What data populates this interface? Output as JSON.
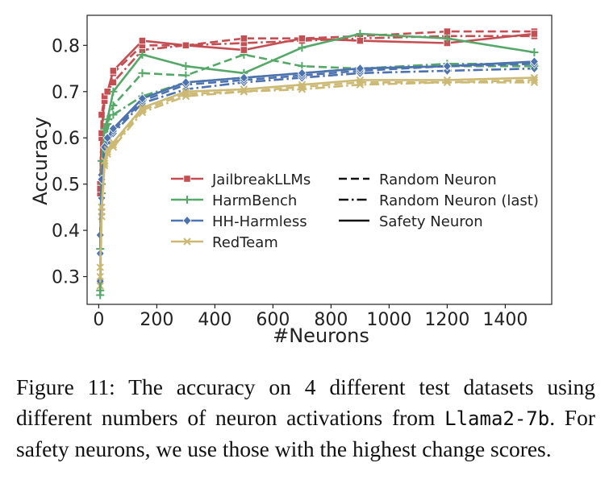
{
  "chart_data": {
    "type": "line",
    "xlabel": "#Neurons",
    "ylabel": "Accuracy",
    "xlim": [
      -40,
      1560
    ],
    "ylim": [
      0.24,
      0.865
    ],
    "xticks": [
      0,
      200,
      400,
      600,
      800,
      1000,
      1200,
      1400
    ],
    "yticks": [
      0.3,
      0.4,
      0.5,
      0.6,
      0.7,
      0.8
    ],
    "x": [
      5,
      10,
      20,
      30,
      50,
      150,
      300,
      500,
      700,
      900,
      1200,
      1500
    ],
    "legend_datasets": [
      {
        "name": "JailbreakLLMs",
        "color": "#c44e52",
        "marker": "square"
      },
      {
        "name": "HarmBench",
        "color": "#55a868",
        "marker": "plus"
      },
      {
        "name": "HH-Harmless",
        "color": "#4c72b0",
        "marker": "diamond"
      },
      {
        "name": "RedTeam",
        "color": "#ccb974",
        "marker": "x"
      }
    ],
    "legend_styles": [
      {
        "name": "Random Neuron",
        "dash": "dashed"
      },
      {
        "name": "Random Neuron (last)",
        "dash": "dashdot"
      },
      {
        "name": "Safety Neuron",
        "dash": "solid"
      }
    ],
    "legend_position": "center",
    "grid": false,
    "series": [
      {
        "dataset": "JailbreakLLMs",
        "style": "solid",
        "values": [
          0.49,
          0.61,
          0.69,
          0.7,
          0.745,
          0.81,
          0.8,
          0.79,
          0.815,
          0.81,
          0.805,
          0.825
        ]
      },
      {
        "dataset": "JailbreakLLMs",
        "style": "dashed",
        "values": [
          0.48,
          0.6,
          0.68,
          0.7,
          0.74,
          0.8,
          0.8,
          0.815,
          0.815,
          0.82,
          0.83,
          0.83
        ]
      },
      {
        "dataset": "JailbreakLLMs",
        "style": "dashdot",
        "values": [
          0.5,
          0.65,
          0.69,
          0.7,
          0.72,
          0.79,
          0.8,
          0.805,
          0.81,
          0.815,
          0.82,
          0.82
        ]
      },
      {
        "dataset": "HarmBench",
        "style": "solid",
        "values": [
          0.36,
          0.55,
          0.62,
          0.64,
          0.7,
          0.78,
          0.755,
          0.74,
          0.795,
          0.825,
          0.815,
          0.785
        ]
      },
      {
        "dataset": "HarmBench",
        "style": "dashed",
        "values": [
          0.27,
          0.5,
          0.6,
          0.63,
          0.67,
          0.74,
          0.735,
          0.78,
          0.755,
          0.75,
          0.755,
          0.755
        ]
      },
      {
        "dataset": "HarmBench",
        "style": "dashdot",
        "values": [
          0.26,
          0.48,
          0.58,
          0.62,
          0.65,
          0.69,
          0.72,
          0.73,
          0.74,
          0.75,
          0.76,
          0.76
        ]
      },
      {
        "dataset": "HH-Harmless",
        "style": "solid",
        "values": [
          0.35,
          0.51,
          0.58,
          0.6,
          0.62,
          0.685,
          0.72,
          0.73,
          0.74,
          0.75,
          0.755,
          0.765
        ]
      },
      {
        "dataset": "HH-Harmless",
        "style": "dashed",
        "values": [
          0.39,
          0.52,
          0.585,
          0.6,
          0.615,
          0.68,
          0.715,
          0.725,
          0.735,
          0.745,
          0.755,
          0.76
        ]
      },
      {
        "dataset": "HH-Harmless",
        "style": "dashdot",
        "values": [
          0.29,
          0.47,
          0.575,
          0.59,
          0.61,
          0.675,
          0.705,
          0.72,
          0.73,
          0.74,
          0.745,
          0.75
        ]
      },
      {
        "dataset": "RedTeam",
        "style": "solid",
        "values": [
          0.32,
          0.45,
          0.55,
          0.575,
          0.59,
          0.665,
          0.7,
          0.705,
          0.715,
          0.725,
          0.725,
          0.73
        ]
      },
      {
        "dataset": "RedTeam",
        "style": "dashed",
        "values": [
          0.3,
          0.44,
          0.545,
          0.57,
          0.585,
          0.66,
          0.695,
          0.7,
          0.71,
          0.72,
          0.72,
          0.725
        ]
      },
      {
        "dataset": "RedTeam",
        "style": "dashdot",
        "values": [
          0.28,
          0.43,
          0.54,
          0.565,
          0.58,
          0.655,
          0.69,
          0.7,
          0.705,
          0.715,
          0.72,
          0.72
        ]
      }
    ]
  },
  "caption": {
    "prefix": "Figure 11:  The accuracy on 4 different test datasets using different numbers of neuron activations from ",
    "code": "Llama2-7b",
    "suffix": ". For safety neurons, we use those with the highest change scores."
  }
}
